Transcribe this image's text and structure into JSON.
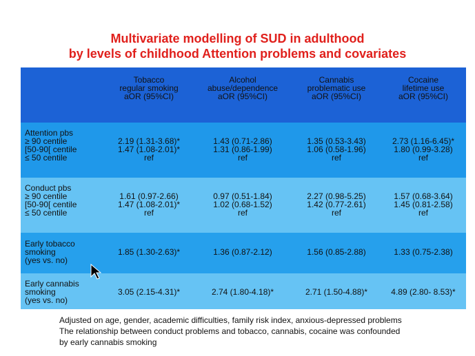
{
  "title": [
    "Multivariate modelling of SUD in adulthood",
    "by levels of childhood Attention problems and covariates"
  ],
  "table": {
    "columns": [
      [
        "Tobacco",
        "regular smoking",
        "aOR (95%CI)"
      ],
      [
        "Alcohol",
        "abuse/dependence",
        "aOR (95%CI)"
      ],
      [
        "Cannabis",
        "problematic use",
        "aOR (95%CI)"
      ],
      [
        "Cocaine",
        "lifetime use",
        "aOR (95%CI)"
      ]
    ],
    "rows": [
      {
        "label": [
          "Attention pbs",
          "≥ 90 centile",
          "[50-90[ centile",
          "≤ 50 centile"
        ],
        "values": [
          [
            "2.19 (1.31-3.68)*",
            "1.47 (1.08-2.01)*",
            "ref"
          ],
          [
            "1.43 (0.71-2.86)",
            "1.31 (0.86-1.99)",
            "ref"
          ],
          [
            "1.35 (0.53-3.43)",
            "1.06 (0.58-1.96)",
            "ref"
          ],
          [
            "2.73 (1.16-6.45)*",
            "1.80 (0.99-3.28)",
            "ref"
          ]
        ]
      },
      {
        "label": [
          "Conduct pbs",
          "≥ 90 centile",
          "[50-90[ centile",
          "≤ 50 centile"
        ],
        "values": [
          [
            "1.61 (0.97-2.66)",
            "1.47 (1.08-2.01)*",
            "ref"
          ],
          [
            "0.97 (0.51-1.84)",
            "1.02 (0.68-1.52)",
            "ref"
          ],
          [
            "2.27 (0.98-5.25)",
            "1.42 (0.77-2.61)",
            "ref"
          ],
          [
            "1.57 (0.68-3.64)",
            "1.45 (0.81-2.58)",
            "ref"
          ]
        ]
      },
      {
        "label": [
          "Early tobacco",
          "smoking",
          "(yes vs. no)"
        ],
        "values": [
          [
            "1.85 (1.30-2.63)*"
          ],
          [
            "1.36 (0.87-2.12)"
          ],
          [
            "1.56 (0.85-2.88)"
          ],
          [
            "1.33 (0.75-2.38)"
          ]
        ]
      },
      {
        "label": [
          "Early cannabis",
          "smoking",
          "(yes vs. no)"
        ],
        "values": [
          [
            "3.05 (2.15-4.31)*"
          ],
          [
            "2.74 (1.80-4.18)*"
          ],
          [
            "2.71 (1.50-4.88)*"
          ],
          [
            "4.89 (2.80- 8.53)*"
          ]
        ]
      }
    ]
  },
  "footnote": [
    "Adjusted on age, gender, academic difficulties, family risk index, anxious-depressed problems",
    "The relationship between conduct problems and tobacco, cannabis, cocaine was confounded",
    "by early cannabis smoking"
  ]
}
